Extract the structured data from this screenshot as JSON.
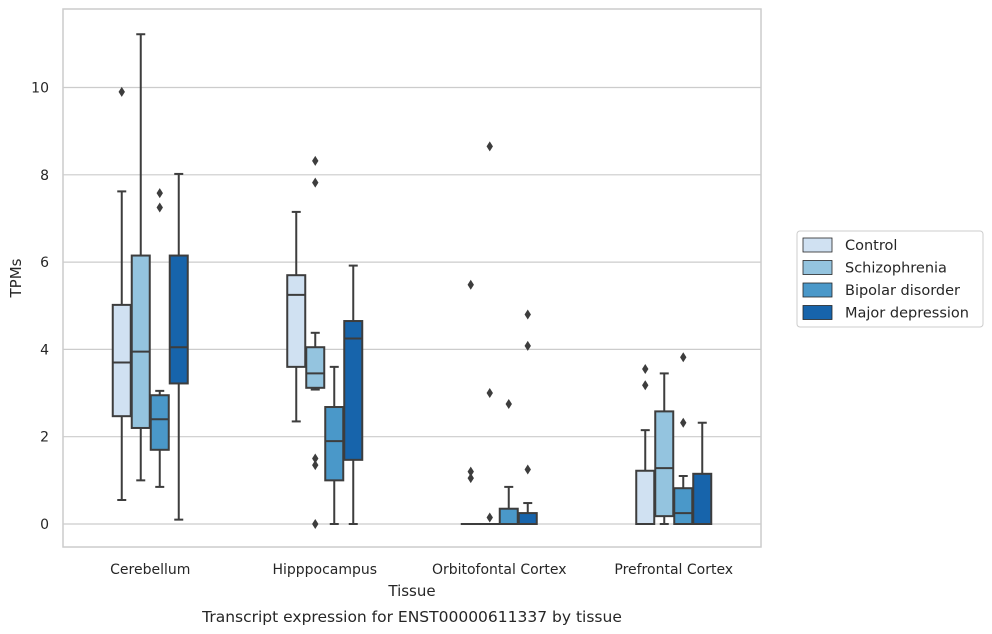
{
  "chart_data": {
    "type": "box",
    "title": "",
    "caption": "Transcript expression for ENST00000611337 by tissue",
    "xlabel": "Tissue",
    "ylabel": "TPMs",
    "ylim": [
      -0.55,
      11.5
    ],
    "yticks": [
      0,
      2,
      4,
      6,
      8,
      10
    ],
    "grid": "horizontal",
    "legend_position": "right",
    "categories": [
      "Cerebellum",
      "Hipppocampus",
      "Orbitofontal Cortex",
      "Prefrontal Cortex"
    ],
    "series": [
      {
        "name": "Control",
        "color": "#d0e1f2",
        "boxes": [
          {
            "whislo": 0.55,
            "q1": 2.47,
            "med": 3.7,
            "q3": 5.02,
            "whishi": 7.62,
            "fliers": [
              9.9
            ]
          },
          {
            "whislo": 2.35,
            "q1": 3.6,
            "med": 5.25,
            "q3": 5.7,
            "whishi": 7.15,
            "fliers": []
          },
          {
            "whislo": 0,
            "q1": 0,
            "med": 0,
            "q3": 0,
            "whishi": 0,
            "fliers": [
              5.48,
              1.2,
              1.05
            ]
          },
          {
            "whislo": 0,
            "q1": 0,
            "med": 0,
            "q3": 1.22,
            "whishi": 2.15,
            "fliers": [
              3.55,
              3.18
            ]
          }
        ]
      },
      {
        "name": "Schizophrenia",
        "color": "#94c4df",
        "boxes": [
          {
            "whislo": 1.0,
            "q1": 2.2,
            "med": 3.95,
            "q3": 6.15,
            "whishi": 11.22,
            "fliers": []
          },
          {
            "whislo": 3.08,
            "q1": 3.12,
            "med": 3.45,
            "q3": 4.05,
            "whishi": 4.38,
            "fliers": [
              8.32,
              7.82,
              1.5,
              1.35,
              0
            ]
          },
          {
            "whislo": 0,
            "q1": 0,
            "med": 0,
            "q3": 0,
            "whishi": 0,
            "fliers": [
              8.65,
              3.0,
              0.15
            ]
          },
          {
            "whislo": 0,
            "q1": 0.18,
            "med": 1.28,
            "q3": 2.58,
            "whishi": 3.45,
            "fliers": []
          }
        ]
      },
      {
        "name": "Bipolar disorder",
        "color": "#4a98c9",
        "boxes": [
          {
            "whislo": 0.85,
            "q1": 1.7,
            "med": 2.4,
            "q3": 2.95,
            "whishi": 3.05,
            "fliers": [
              7.58,
              7.25
            ]
          },
          {
            "whislo": 0,
            "q1": 1.0,
            "med": 1.9,
            "q3": 2.68,
            "whishi": 3.6,
            "fliers": []
          },
          {
            "whislo": 0,
            "q1": 0,
            "med": 0,
            "q3": 0.35,
            "whishi": 0.85,
            "fliers": [
              2.75
            ]
          },
          {
            "whislo": 0,
            "q1": 0,
            "med": 0.25,
            "q3": 0.82,
            "whishi": 1.1,
            "fliers": [
              3.82,
              2.32
            ]
          }
        ]
      },
      {
        "name": "Major depression",
        "color": "#1764ab",
        "boxes": [
          {
            "whislo": 0.1,
            "q1": 3.22,
            "med": 4.05,
            "q3": 6.15,
            "whishi": 8.02,
            "fliers": []
          },
          {
            "whislo": 0,
            "q1": 1.47,
            "med": 4.25,
            "q3": 4.65,
            "whishi": 5.92,
            "fliers": []
          },
          {
            "whislo": 0,
            "q1": 0,
            "med": 0,
            "q3": 0.25,
            "whishi": 0.48,
            "fliers": [
              4.8,
              4.08,
              1.25
            ]
          },
          {
            "whislo": 0,
            "q1": 0,
            "med": 0,
            "q3": 1.15,
            "whishi": 2.32,
            "fliers": []
          }
        ]
      }
    ]
  },
  "colors": {
    "grid": "#cccccc",
    "frame": "#cccccc",
    "line": "#3d3d3d"
  }
}
